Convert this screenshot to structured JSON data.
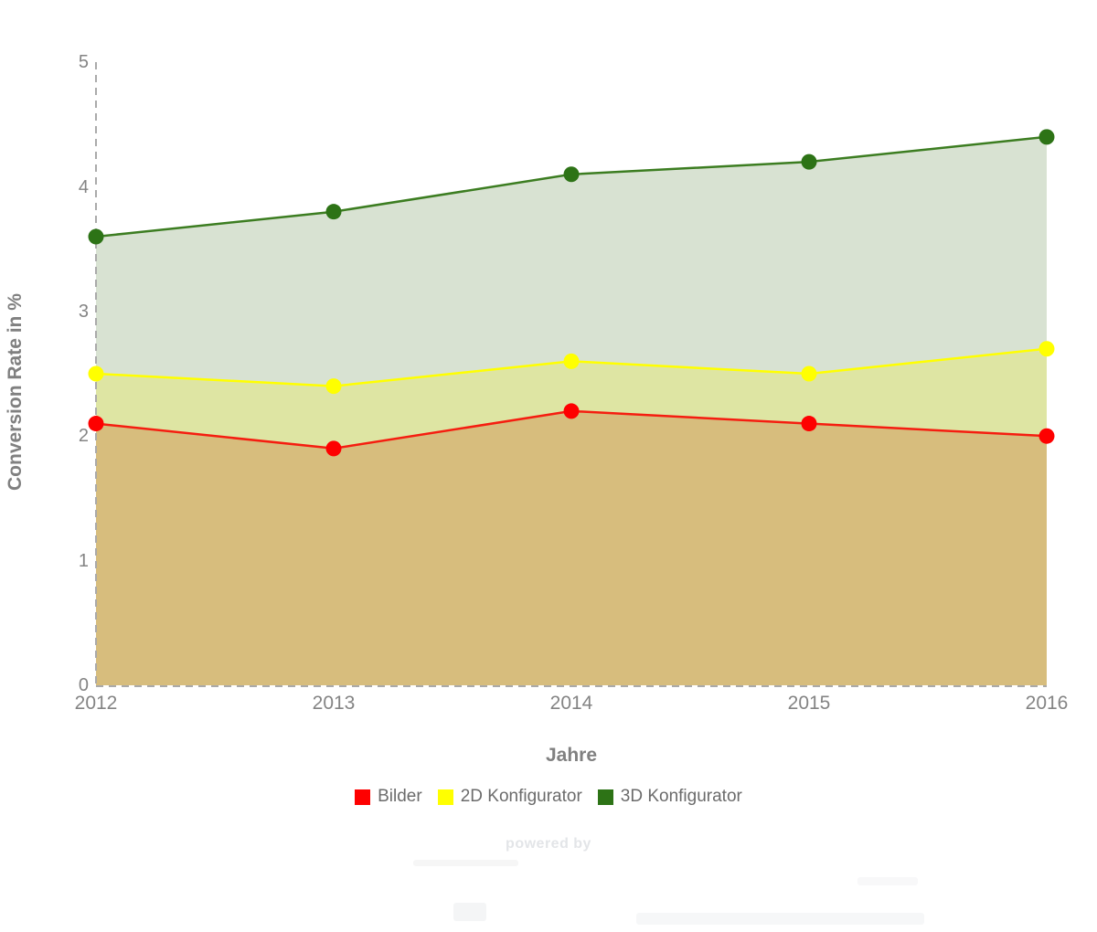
{
  "chart_data": {
    "type": "area",
    "title": "",
    "xlabel": "Jahre",
    "ylabel": "Conversion Rate in %",
    "categories": [
      "2012",
      "2013",
      "2014",
      "2015",
      "2016"
    ],
    "y_ticks": [
      "0",
      "1",
      "2",
      "3",
      "4",
      "5"
    ],
    "ylim": [
      0,
      5
    ],
    "grid": false,
    "legend_position": "bottom",
    "axis_style": "dashed-gray",
    "series": [
      {
        "name": "Bilder",
        "color": "#fe0000",
        "line_color": "#f51d10",
        "values": [
          2.1,
          1.9,
          2.2,
          2.1,
          2.0
        ]
      },
      {
        "name": "2D Konfigurator",
        "color": "#ffff00",
        "line_color": "#ffff00",
        "values": [
          2.5,
          2.4,
          2.6,
          2.5,
          2.7
        ]
      },
      {
        "name": "3D Konfigurator",
        "color": "#2d7316",
        "line_color": "#3c7d21",
        "values": [
          3.6,
          3.8,
          4.1,
          4.2,
          4.4
        ]
      }
    ],
    "band_colors": [
      "#d7bd7d",
      "#dee5a3",
      "#d8e2d2"
    ],
    "axis_color": "#aaaaaa"
  },
  "watermark": {
    "text": "powered by"
  }
}
